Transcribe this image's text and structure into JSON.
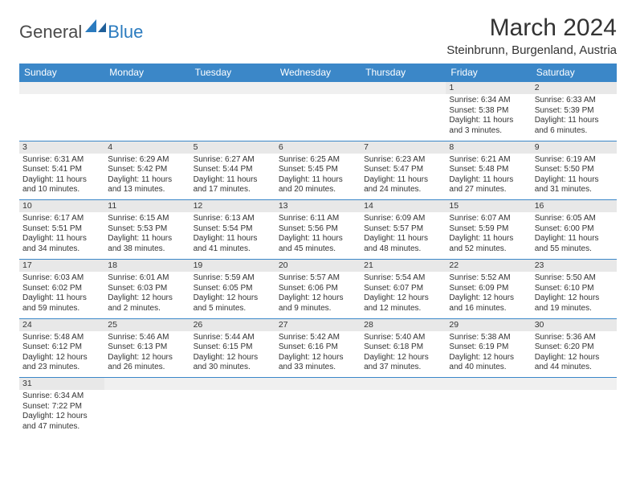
{
  "logo": {
    "part1": "General",
    "part2": "Blue"
  },
  "title": "March 2024",
  "location": "Steinbrunn, Burgenland, Austria",
  "colors": {
    "header_bg": "#3b87c8",
    "header_text": "#ffffff",
    "daynum_bg": "#e8e8e8",
    "border": "#3b87c8",
    "logo_gray": "#4a4a4a",
    "logo_blue": "#2b7bbf"
  },
  "day_headers": [
    "Sunday",
    "Monday",
    "Tuesday",
    "Wednesday",
    "Thursday",
    "Friday",
    "Saturday"
  ],
  "weeks": [
    {
      "nums": [
        "",
        "",
        "",
        "",
        "",
        "1",
        "2"
      ],
      "cells": [
        null,
        null,
        null,
        null,
        null,
        {
          "sunrise": "6:34 AM",
          "sunset": "5:38 PM",
          "day_h": 11,
          "day_m": 3
        },
        {
          "sunrise": "6:33 AM",
          "sunset": "5:39 PM",
          "day_h": 11,
          "day_m": 6
        }
      ]
    },
    {
      "nums": [
        "3",
        "4",
        "5",
        "6",
        "7",
        "8",
        "9"
      ],
      "cells": [
        {
          "sunrise": "6:31 AM",
          "sunset": "5:41 PM",
          "day_h": 11,
          "day_m": 10
        },
        {
          "sunrise": "6:29 AM",
          "sunset": "5:42 PM",
          "day_h": 11,
          "day_m": 13
        },
        {
          "sunrise": "6:27 AM",
          "sunset": "5:44 PM",
          "day_h": 11,
          "day_m": 17
        },
        {
          "sunrise": "6:25 AM",
          "sunset": "5:45 PM",
          "day_h": 11,
          "day_m": 20
        },
        {
          "sunrise": "6:23 AM",
          "sunset": "5:47 PM",
          "day_h": 11,
          "day_m": 24
        },
        {
          "sunrise": "6:21 AM",
          "sunset": "5:48 PM",
          "day_h": 11,
          "day_m": 27
        },
        {
          "sunrise": "6:19 AM",
          "sunset": "5:50 PM",
          "day_h": 11,
          "day_m": 31
        }
      ]
    },
    {
      "nums": [
        "10",
        "11",
        "12",
        "13",
        "14",
        "15",
        "16"
      ],
      "cells": [
        {
          "sunrise": "6:17 AM",
          "sunset": "5:51 PM",
          "day_h": 11,
          "day_m": 34
        },
        {
          "sunrise": "6:15 AM",
          "sunset": "5:53 PM",
          "day_h": 11,
          "day_m": 38
        },
        {
          "sunrise": "6:13 AM",
          "sunset": "5:54 PM",
          "day_h": 11,
          "day_m": 41
        },
        {
          "sunrise": "6:11 AM",
          "sunset": "5:56 PM",
          "day_h": 11,
          "day_m": 45
        },
        {
          "sunrise": "6:09 AM",
          "sunset": "5:57 PM",
          "day_h": 11,
          "day_m": 48
        },
        {
          "sunrise": "6:07 AM",
          "sunset": "5:59 PM",
          "day_h": 11,
          "day_m": 52
        },
        {
          "sunrise": "6:05 AM",
          "sunset": "6:00 PM",
          "day_h": 11,
          "day_m": 55
        }
      ]
    },
    {
      "nums": [
        "17",
        "18",
        "19",
        "20",
        "21",
        "22",
        "23"
      ],
      "cells": [
        {
          "sunrise": "6:03 AM",
          "sunset": "6:02 PM",
          "day_h": 11,
          "day_m": 59
        },
        {
          "sunrise": "6:01 AM",
          "sunset": "6:03 PM",
          "day_h": 12,
          "day_m": 2
        },
        {
          "sunrise": "5:59 AM",
          "sunset": "6:05 PM",
          "day_h": 12,
          "day_m": 5
        },
        {
          "sunrise": "5:57 AM",
          "sunset": "6:06 PM",
          "day_h": 12,
          "day_m": 9
        },
        {
          "sunrise": "5:54 AM",
          "sunset": "6:07 PM",
          "day_h": 12,
          "day_m": 12
        },
        {
          "sunrise": "5:52 AM",
          "sunset": "6:09 PM",
          "day_h": 12,
          "day_m": 16
        },
        {
          "sunrise": "5:50 AM",
          "sunset": "6:10 PM",
          "day_h": 12,
          "day_m": 19
        }
      ]
    },
    {
      "nums": [
        "24",
        "25",
        "26",
        "27",
        "28",
        "29",
        "30"
      ],
      "cells": [
        {
          "sunrise": "5:48 AM",
          "sunset": "6:12 PM",
          "day_h": 12,
          "day_m": 23
        },
        {
          "sunrise": "5:46 AM",
          "sunset": "6:13 PM",
          "day_h": 12,
          "day_m": 26
        },
        {
          "sunrise": "5:44 AM",
          "sunset": "6:15 PM",
          "day_h": 12,
          "day_m": 30
        },
        {
          "sunrise": "5:42 AM",
          "sunset": "6:16 PM",
          "day_h": 12,
          "day_m": 33
        },
        {
          "sunrise": "5:40 AM",
          "sunset": "6:18 PM",
          "day_h": 12,
          "day_m": 37
        },
        {
          "sunrise": "5:38 AM",
          "sunset": "6:19 PM",
          "day_h": 12,
          "day_m": 40
        },
        {
          "sunrise": "5:36 AM",
          "sunset": "6:20 PM",
          "day_h": 12,
          "day_m": 44
        }
      ]
    },
    {
      "nums": [
        "31",
        "",
        "",
        "",
        "",
        "",
        ""
      ],
      "cells": [
        {
          "sunrise": "6:34 AM",
          "sunset": "7:22 PM",
          "day_h": 12,
          "day_m": 47
        },
        null,
        null,
        null,
        null,
        null,
        null
      ]
    }
  ]
}
